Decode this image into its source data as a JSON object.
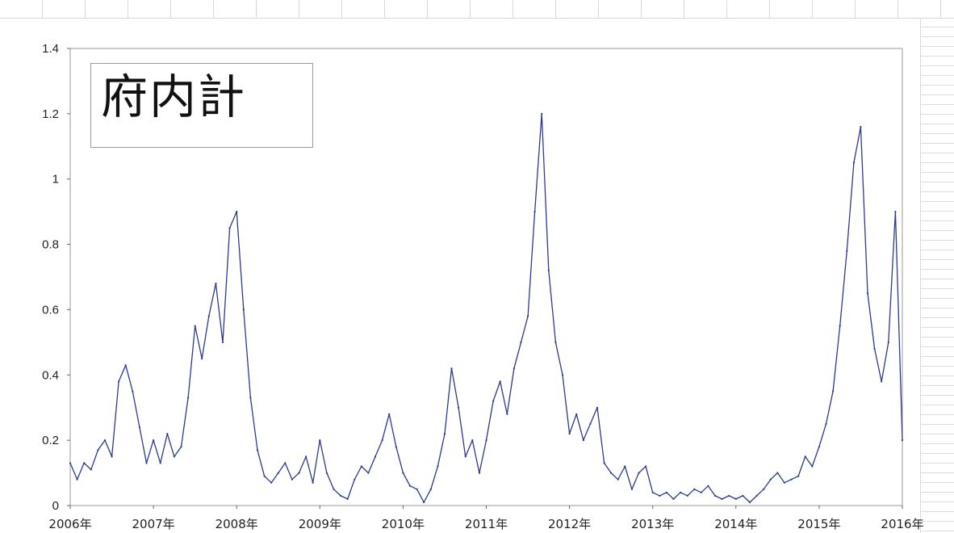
{
  "chart_data": {
    "type": "line",
    "title": "府内計",
    "xlabel": "",
    "ylabel": "",
    "ylim": [
      0,
      1.4
    ],
    "xlim": [
      "2006-01",
      "2016-01"
    ],
    "y_ticks": [
      "0",
      "0.2",
      "0.4",
      "0.6",
      "0.8",
      "1",
      "1.2",
      "1.4"
    ],
    "x_ticks": [
      "2006年",
      "2007年",
      "2008年",
      "2009年",
      "2010年",
      "2011年",
      "2012年",
      "2013年",
      "2014年",
      "2015年",
      "2016年"
    ],
    "grid": false,
    "line_color": "#2b3a8f",
    "series": [
      {
        "points": [
          [
            "2006-01",
            0.13
          ],
          [
            "2006-02",
            0.08
          ],
          [
            "2006-03",
            0.13
          ],
          [
            "2006-04",
            0.11
          ],
          [
            "2006-05",
            0.17
          ],
          [
            "2006-06",
            0.2
          ],
          [
            "2006-07",
            0.15
          ],
          [
            "2006-08",
            0.38
          ],
          [
            "2006-09",
            0.43
          ],
          [
            "2006-10",
            0.35
          ],
          [
            "2006-11",
            0.24
          ],
          [
            "2006-12",
            0.13
          ],
          [
            "2007-01",
            0.2
          ],
          [
            "2007-02",
            0.13
          ],
          [
            "2007-03",
            0.22
          ],
          [
            "2007-04",
            0.15
          ],
          [
            "2007-05",
            0.18
          ],
          [
            "2007-06",
            0.33
          ],
          [
            "2007-07",
            0.55
          ],
          [
            "2007-08",
            0.45
          ],
          [
            "2007-09",
            0.58
          ],
          [
            "2007-10",
            0.68
          ],
          [
            "2007-11",
            0.5
          ],
          [
            "2007-12",
            0.85
          ],
          [
            "2008-01",
            0.9
          ],
          [
            "2008-02",
            0.6
          ],
          [
            "2008-03",
            0.33
          ],
          [
            "2008-04",
            0.17
          ],
          [
            "2008-05",
            0.09
          ],
          [
            "2008-06",
            0.07
          ],
          [
            "2008-07",
            0.1
          ],
          [
            "2008-08",
            0.13
          ],
          [
            "2008-09",
            0.08
          ],
          [
            "2008-10",
            0.1
          ],
          [
            "2008-11",
            0.15
          ],
          [
            "2008-12",
            0.07
          ],
          [
            "2009-01",
            0.2
          ],
          [
            "2009-02",
            0.1
          ],
          [
            "2009-03",
            0.05
          ],
          [
            "2009-04",
            0.03
          ],
          [
            "2009-05",
            0.02
          ],
          [
            "2009-06",
            0.08
          ],
          [
            "2009-07",
            0.12
          ],
          [
            "2009-08",
            0.1
          ],
          [
            "2009-09",
            0.15
          ],
          [
            "2009-10",
            0.2
          ],
          [
            "2009-11",
            0.28
          ],
          [
            "2009-12",
            0.18
          ],
          [
            "2010-01",
            0.1
          ],
          [
            "2010-02",
            0.06
          ],
          [
            "2010-03",
            0.05
          ],
          [
            "2010-04",
            0.01
          ],
          [
            "2010-05",
            0.05
          ],
          [
            "2010-06",
            0.12
          ],
          [
            "2010-07",
            0.22
          ],
          [
            "2010-08",
            0.42
          ],
          [
            "2010-09",
            0.3
          ],
          [
            "2010-10",
            0.15
          ],
          [
            "2010-11",
            0.2
          ],
          [
            "2010-12",
            0.1
          ],
          [
            "2011-01",
            0.2
          ],
          [
            "2011-02",
            0.32
          ],
          [
            "2011-03",
            0.38
          ],
          [
            "2011-04",
            0.28
          ],
          [
            "2011-05",
            0.42
          ],
          [
            "2011-06",
            0.5
          ],
          [
            "2011-07",
            0.58
          ],
          [
            "2011-08",
            0.9
          ],
          [
            "2011-09",
            1.2
          ],
          [
            "2011-10",
            0.72
          ],
          [
            "2011-11",
            0.5
          ],
          [
            "2011-12",
            0.4
          ],
          [
            "2012-01",
            0.22
          ],
          [
            "2012-02",
            0.28
          ],
          [
            "2012-03",
            0.2
          ],
          [
            "2012-04",
            0.25
          ],
          [
            "2012-05",
            0.3
          ],
          [
            "2012-06",
            0.13
          ],
          [
            "2012-07",
            0.1
          ],
          [
            "2012-08",
            0.08
          ],
          [
            "2012-09",
            0.12
          ],
          [
            "2012-10",
            0.05
          ],
          [
            "2012-11",
            0.1
          ],
          [
            "2012-12",
            0.12
          ],
          [
            "2013-01",
            0.04
          ],
          [
            "2013-02",
            0.03
          ],
          [
            "2013-03",
            0.04
          ],
          [
            "2013-04",
            0.02
          ],
          [
            "2013-05",
            0.04
          ],
          [
            "2013-06",
            0.03
          ],
          [
            "2013-07",
            0.05
          ],
          [
            "2013-08",
            0.04
          ],
          [
            "2013-09",
            0.06
          ],
          [
            "2013-10",
            0.03
          ],
          [
            "2013-11",
            0.02
          ],
          [
            "2013-12",
            0.03
          ],
          [
            "2014-01",
            0.02
          ],
          [
            "2014-02",
            0.03
          ],
          [
            "2014-03",
            0.01
          ],
          [
            "2014-04",
            0.03
          ],
          [
            "2014-05",
            0.05
          ],
          [
            "2014-06",
            0.08
          ],
          [
            "2014-07",
            0.1
          ],
          [
            "2014-08",
            0.07
          ],
          [
            "2014-09",
            0.08
          ],
          [
            "2014-10",
            0.09
          ],
          [
            "2014-11",
            0.15
          ],
          [
            "2014-12",
            0.12
          ],
          [
            "2015-01",
            0.18
          ],
          [
            "2015-02",
            0.25
          ],
          [
            "2015-03",
            0.35
          ],
          [
            "2015-04",
            0.55
          ],
          [
            "2015-05",
            0.78
          ],
          [
            "2015-06",
            1.05
          ],
          [
            "2015-07",
            1.16
          ],
          [
            "2015-08",
            0.65
          ],
          [
            "2015-09",
            0.48
          ],
          [
            "2015-10",
            0.38
          ],
          [
            "2015-11",
            0.5
          ],
          [
            "2015-12",
            0.9
          ],
          [
            "2016-01",
            0.2
          ]
        ]
      }
    ]
  }
}
